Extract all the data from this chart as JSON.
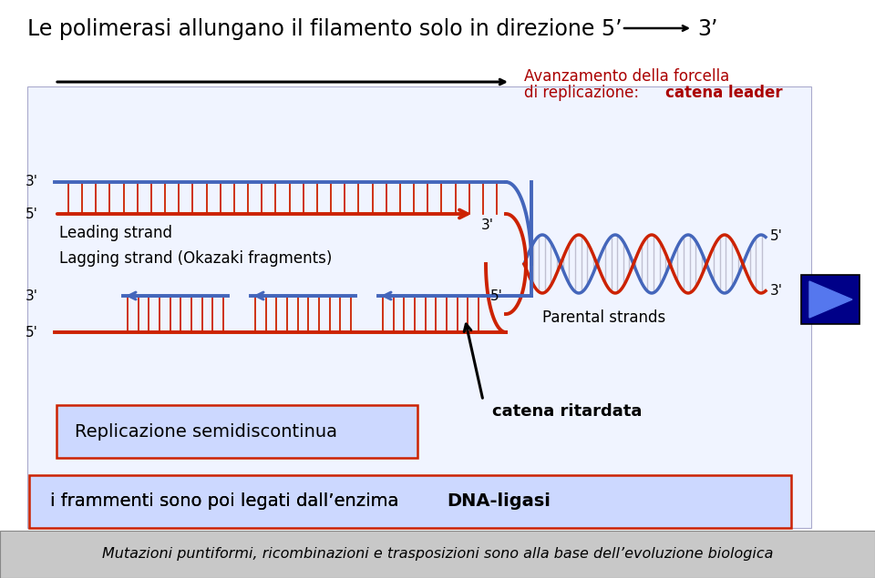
{
  "title_part1": "Le polimerasi allungano il filamento solo in direzione 5’",
  "title_part2": "3’",
  "bg_color": "#ffffff",
  "diagram_bg": "#ddeeff",
  "red_color": "#cc2200",
  "blue_color": "#4466bb",
  "box_fill": "#ccd8ff",
  "box_border": "#cc2200",
  "footer_bg": "#c8c8c8",
  "nav_box_color": "#000088",
  "nav_arrow_color": "#4466ff",
  "label_avanzamento1": "Avanzamento della forcella",
  "label_avanzamento2": "di replicazione: ",
  "label_avanzamento3": "catena leader",
  "label_leading": "Leading strand",
  "label_lagging": "Lagging strand (Okazaki fragments)",
  "label_parental": "Parental strands",
  "label_replicazione": "Replicazione semidiscontinua",
  "label_frammenti1": "i frammenti sono poi legati dall’enzima ",
  "label_frammenti2": "DNA-ligasi",
  "label_catena": "catena ritardata",
  "footer_text": "Mutazioni puntiformi, ricombinazioni e trasposizioni sono alla base dell’evoluzione biologica"
}
